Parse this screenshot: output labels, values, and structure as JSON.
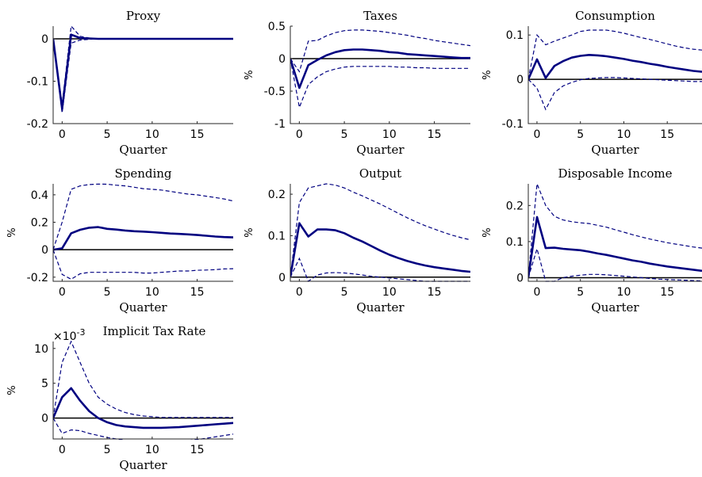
{
  "chart_data": [
    {
      "type": "line",
      "title": "Proxy",
      "xlabel": "Quarter",
      "ylabel": "",
      "xlim": [
        -1,
        19
      ],
      "ylim": [
        -0.2,
        0.03
      ],
      "xticks": [
        0,
        5,
        10,
        15
      ],
      "yticks": [
        -0.2,
        -0.1,
        0
      ],
      "ytick_labels": [
        "-0.2",
        "-0.1",
        "0"
      ],
      "x": [
        -1,
        0,
        1,
        2,
        3,
        4,
        5,
        6,
        7,
        8,
        9,
        10,
        11,
        12,
        13,
        14,
        15,
        16,
        17,
        18,
        19
      ],
      "series": [
        {
          "role": "estimate",
          "values": [
            0,
            -0.165,
            0.01,
            0.002,
            0.001,
            0,
            0,
            0,
            0,
            0,
            0,
            0,
            0,
            0,
            0,
            0,
            0,
            0,
            0,
            0,
            0
          ]
        },
        {
          "role": "upper",
          "values": [
            0,
            -0.155,
            0.03,
            0.006,
            0.002,
            0,
            0,
            0,
            0,
            0,
            0,
            0,
            0,
            0,
            0,
            0,
            0,
            0,
            0,
            0,
            0
          ]
        },
        {
          "role": "lower",
          "values": [
            0,
            -0.175,
            -0.01,
            -0.003,
            -0.001,
            0,
            0,
            0,
            0,
            0,
            0,
            0,
            0,
            0,
            0,
            0,
            0,
            0,
            0,
            0,
            0
          ]
        }
      ]
    },
    {
      "type": "line",
      "title": "Taxes",
      "xlabel": "Quarter",
      "ylabel": "%",
      "xlim": [
        -1,
        19
      ],
      "ylim": [
        -1,
        0.5
      ],
      "xticks": [
        0,
        5,
        10,
        15
      ],
      "yticks": [
        -1,
        -0.5,
        0,
        0.5
      ],
      "ytick_labels": [
        "-1",
        "-0.5",
        "0",
        "0.5"
      ],
      "x": [
        -1,
        0,
        1,
        2,
        3,
        4,
        5,
        6,
        7,
        8,
        9,
        10,
        11,
        12,
        13,
        14,
        15,
        16,
        17,
        18,
        19
      ],
      "series": [
        {
          "role": "estimate",
          "values": [
            0,
            -0.45,
            -0.1,
            -0.02,
            0.05,
            0.1,
            0.13,
            0.14,
            0.14,
            0.13,
            0.12,
            0.1,
            0.09,
            0.07,
            0.06,
            0.05,
            0.04,
            0.03,
            0.02,
            0.01,
            0.01
          ]
        },
        {
          "role": "upper",
          "values": [
            0,
            -0.2,
            0.27,
            0.28,
            0.35,
            0.4,
            0.43,
            0.44,
            0.44,
            0.43,
            0.42,
            0.4,
            0.38,
            0.36,
            0.33,
            0.31,
            0.28,
            0.26,
            0.24,
            0.22,
            0.2
          ]
        },
        {
          "role": "lower",
          "values": [
            0,
            -0.75,
            -0.4,
            -0.28,
            -0.2,
            -0.16,
            -0.13,
            -0.12,
            -0.12,
            -0.12,
            -0.12,
            -0.12,
            -0.13,
            -0.13,
            -0.14,
            -0.14,
            -0.15,
            -0.15,
            -0.15,
            -0.15,
            -0.15
          ]
        }
      ]
    },
    {
      "type": "line",
      "title": "Consumption",
      "xlabel": "Quarter",
      "ylabel": "%",
      "xlim": [
        -1,
        19
      ],
      "ylim": [
        -0.1,
        0.12
      ],
      "xticks": [
        0,
        5,
        10,
        15
      ],
      "yticks": [
        -0.1,
        0,
        0.1
      ],
      "ytick_labels": [
        "-0.1",
        "0",
        "0.1"
      ],
      "x": [
        -1,
        0,
        1,
        2,
        3,
        4,
        5,
        6,
        7,
        8,
        9,
        10,
        11,
        12,
        13,
        14,
        15,
        16,
        17,
        18,
        19
      ],
      "series": [
        {
          "role": "estimate",
          "values": [
            0,
            0.045,
            0.003,
            0.03,
            0.041,
            0.049,
            0.053,
            0.055,
            0.054,
            0.052,
            0.049,
            0.046,
            0.042,
            0.039,
            0.035,
            0.032,
            0.028,
            0.025,
            0.022,
            0.019,
            0.017
          ]
        },
        {
          "role": "upper",
          "values": [
            0,
            0.1,
            0.078,
            0.086,
            0.093,
            0.1,
            0.108,
            0.111,
            0.111,
            0.111,
            0.108,
            0.104,
            0.099,
            0.094,
            0.09,
            0.085,
            0.08,
            0.075,
            0.071,
            0.068,
            0.066
          ]
        },
        {
          "role": "lower",
          "values": [
            0,
            -0.02,
            -0.068,
            -0.03,
            -0.015,
            -0.007,
            -0.001,
            0.002,
            0.003,
            0.004,
            0.004,
            0.003,
            0.002,
            0.001,
            0,
            -0.001,
            -0.002,
            -0.003,
            -0.004,
            -0.005,
            -0.005
          ]
        }
      ]
    },
    {
      "type": "line",
      "title": "Spending",
      "xlabel": "Quarter",
      "ylabel": "%",
      "xlim": [
        -1,
        19
      ],
      "ylim": [
        -0.23,
        0.48
      ],
      "xticks": [
        0,
        5,
        10,
        15
      ],
      "yticks": [
        -0.2,
        0,
        0.2,
        0.4
      ],
      "ytick_labels": [
        "-0.2",
        "0",
        "0.2",
        "0.4"
      ],
      "x": [
        -1,
        0,
        1,
        2,
        3,
        4,
        5,
        6,
        7,
        8,
        9,
        10,
        11,
        12,
        13,
        14,
        15,
        16,
        17,
        18,
        19
      ],
      "series": [
        {
          "role": "estimate",
          "values": [
            0,
            0.01,
            0.12,
            0.145,
            0.16,
            0.165,
            0.152,
            0.147,
            0.14,
            0.135,
            0.132,
            0.128,
            0.123,
            0.118,
            0.115,
            0.112,
            0.107,
            0.102,
            0.096,
            0.092,
            0.09
          ]
        },
        {
          "role": "upper",
          "values": [
            0,
            0.2,
            0.44,
            0.465,
            0.475,
            0.478,
            0.477,
            0.47,
            0.465,
            0.455,
            0.445,
            0.44,
            0.435,
            0.425,
            0.415,
            0.405,
            0.4,
            0.39,
            0.38,
            0.37,
            0.355
          ]
        },
        {
          "role": "lower",
          "values": [
            0,
            -0.18,
            -0.215,
            -0.175,
            -0.165,
            -0.165,
            -0.165,
            -0.165,
            -0.165,
            -0.165,
            -0.17,
            -0.17,
            -0.165,
            -0.16,
            -0.155,
            -0.155,
            -0.15,
            -0.148,
            -0.145,
            -0.14,
            -0.138
          ]
        }
      ]
    },
    {
      "type": "line",
      "title": "Output",
      "xlabel": "Quarter",
      "ylabel": "%",
      "xlim": [
        -1,
        19
      ],
      "ylim": [
        -0.01,
        0.225
      ],
      "xticks": [
        0,
        5,
        10,
        15
      ],
      "yticks": [
        0,
        0.1,
        0.2
      ],
      "ytick_labels": [
        "0",
        "0.1",
        "0.2"
      ],
      "x": [
        -1,
        0,
        1,
        2,
        3,
        4,
        5,
        6,
        7,
        8,
        9,
        10,
        11,
        12,
        13,
        14,
        15,
        16,
        17,
        18,
        19
      ],
      "series": [
        {
          "role": "estimate",
          "values": [
            0,
            0.13,
            0.098,
            0.115,
            0.115,
            0.113,
            0.106,
            0.095,
            0.086,
            0.075,
            0.064,
            0.054,
            0.046,
            0.039,
            0.033,
            0.028,
            0.024,
            0.021,
            0.018,
            0.015,
            0.013
          ]
        },
        {
          "role": "upper",
          "values": [
            0,
            0.18,
            0.215,
            0.22,
            0.225,
            0.222,
            0.215,
            0.205,
            0.196,
            0.186,
            0.176,
            0.165,
            0.154,
            0.143,
            0.133,
            0.124,
            0.116,
            0.108,
            0.101,
            0.095,
            0.09
          ]
        },
        {
          "role": "lower",
          "values": [
            0,
            0.045,
            -0.01,
            0.005,
            0.01,
            0.011,
            0.01,
            0.008,
            0.005,
            0.002,
            0,
            -0.002,
            -0.004,
            -0.006,
            -0.008,
            -0.01,
            -0.01,
            -0.01,
            -0.01,
            -0.01,
            -0.01
          ]
        }
      ]
    },
    {
      "type": "line",
      "title": "Disposable Income",
      "xlabel": "Quarter",
      "ylabel": "%",
      "xlim": [
        -1,
        19
      ],
      "ylim": [
        -0.01,
        0.26
      ],
      "xticks": [
        0,
        5,
        10,
        15
      ],
      "yticks": [
        0,
        0.1,
        0.2
      ],
      "ytick_labels": [
        "0",
        "0.1",
        "0.2"
      ],
      "x": [
        -1,
        0,
        1,
        2,
        3,
        4,
        5,
        6,
        7,
        8,
        9,
        10,
        11,
        12,
        13,
        14,
        15,
        16,
        17,
        18,
        19
      ],
      "series": [
        {
          "role": "estimate",
          "values": [
            0,
            0.168,
            0.082,
            0.083,
            0.08,
            0.078,
            0.076,
            0.072,
            0.067,
            0.063,
            0.058,
            0.053,
            0.048,
            0.044,
            0.039,
            0.035,
            0.031,
            0.028,
            0.025,
            0.022,
            0.019
          ]
        },
        {
          "role": "upper",
          "values": [
            0,
            0.26,
            0.2,
            0.17,
            0.16,
            0.155,
            0.152,
            0.15,
            0.145,
            0.14,
            0.133,
            0.126,
            0.119,
            0.113,
            0.107,
            0.102,
            0.097,
            0.093,
            0.089,
            0.085,
            0.082
          ]
        },
        {
          "role": "lower",
          "values": [
            0,
            0.08,
            -0.01,
            -0.01,
            0,
            0.004,
            0.007,
            0.009,
            0.009,
            0.008,
            0.006,
            0.004,
            0.002,
            0,
            -0.002,
            -0.004,
            -0.005,
            -0.006,
            -0.007,
            -0.008,
            -0.009
          ]
        }
      ]
    },
    {
      "type": "line",
      "title": "Implicit Tax Rate",
      "xlabel": "Quarter",
      "ylabel": "%",
      "scale_label": "×10",
      "scale_exponent": "-3",
      "xlim": [
        -1,
        19
      ],
      "ylim": [
        -3,
        11
      ],
      "xticks": [
        0,
        5,
        10,
        15
      ],
      "yticks": [
        0,
        5,
        10
      ],
      "ytick_labels": [
        "0",
        "5",
        "10"
      ],
      "x": [
        -1,
        0,
        1,
        2,
        3,
        4,
        5,
        6,
        7,
        8,
        9,
        10,
        11,
        12,
        13,
        14,
        15,
        16,
        17,
        18,
        19
      ],
      "series": [
        {
          "role": "estimate",
          "values": [
            0,
            3,
            4.3,
            2.5,
            1,
            0,
            -0.6,
            -1,
            -1.2,
            -1.3,
            -1.4,
            -1.4,
            -1.4,
            -1.35,
            -1.3,
            -1.2,
            -1.1,
            -1,
            -0.9,
            -0.8,
            -0.7
          ]
        },
        {
          "role": "upper",
          "values": [
            0,
            8,
            11,
            8,
            5,
            3,
            2,
            1.3,
            0.8,
            0.5,
            0.3,
            0.2,
            0.1,
            0.1,
            0.1,
            0.1,
            0.1,
            0.1,
            0.1,
            0.1,
            0.1
          ]
        },
        {
          "role": "lower",
          "values": [
            0,
            -2.2,
            -1.7,
            -1.8,
            -2.2,
            -2.5,
            -2.8,
            -3,
            -3.2,
            -3.3,
            -3.4,
            -3.45,
            -3.45,
            -3.4,
            -3.3,
            -3.2,
            -3.1,
            -2.9,
            -2.7,
            -2.5,
            -2.3
          ]
        }
      ]
    }
  ]
}
